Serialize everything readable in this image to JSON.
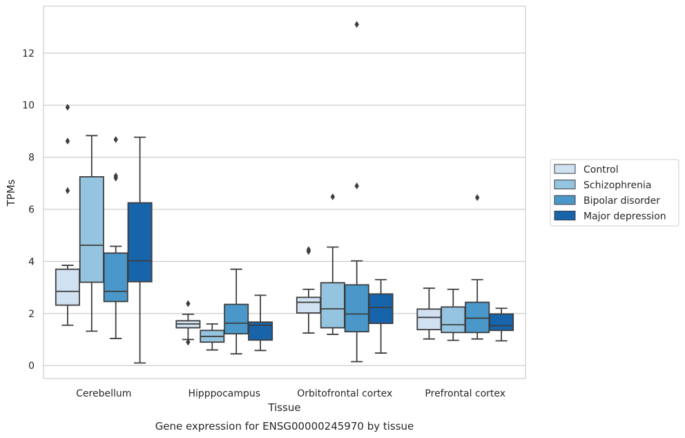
{
  "caption": "Gene expression for ENSG00000245970 by tissue",
  "chart_data": {
    "type": "box",
    "xlabel": "Tissue",
    "ylabel": "TPMs",
    "ylim": [
      -0.5,
      13.8
    ],
    "yticks": [
      0,
      2,
      4,
      6,
      8,
      10,
      12
    ],
    "grid": "horizontal",
    "legend_position": "right",
    "categories": [
      "Cerebellum",
      "Hipppocampus",
      "Orbitofrontal cortex",
      "Prefrontal cortex"
    ],
    "series": [
      {
        "name": "Control",
        "color": "#d0e1f2",
        "boxes": [
          {
            "whislo": 1.55,
            "q1": 2.32,
            "med": 2.85,
            "q3": 3.7,
            "whishi": 3.85,
            "fliers": [
              6.72,
              8.62,
              9.92
            ]
          },
          {
            "whislo": 1.0,
            "q1": 1.45,
            "med": 1.6,
            "q3": 1.72,
            "whishi": 1.97,
            "fliers": [
              0.9,
              2.38
            ]
          },
          {
            "whislo": 1.25,
            "q1": 2.02,
            "med": 2.43,
            "q3": 2.62,
            "whishi": 2.93,
            "fliers": [
              4.38,
              4.45
            ]
          },
          {
            "whislo": 1.02,
            "q1": 1.38,
            "med": 1.85,
            "q3": 2.17,
            "whishi": 2.97,
            "fliers": []
          }
        ]
      },
      {
        "name": "Schizophrenia",
        "color": "#94c4df",
        "boxes": [
          {
            "whislo": 1.32,
            "q1": 3.2,
            "med": 4.62,
            "q3": 7.25,
            "whishi": 8.83,
            "fliers": []
          },
          {
            "whislo": 0.6,
            "q1": 0.9,
            "med": 1.12,
            "q3": 1.35,
            "whishi": 1.6,
            "fliers": []
          },
          {
            "whislo": 1.2,
            "q1": 1.45,
            "med": 2.18,
            "q3": 3.18,
            "whishi": 4.55,
            "fliers": [
              6.48
            ]
          },
          {
            "whislo": 0.97,
            "q1": 1.27,
            "med": 1.57,
            "q3": 2.25,
            "whishi": 2.93,
            "fliers": []
          }
        ]
      },
      {
        "name": "Bipolar disorder",
        "color": "#4a98c9",
        "boxes": [
          {
            "whislo": 1.04,
            "q1": 2.46,
            "med": 2.85,
            "q3": 4.32,
            "whishi": 4.58,
            "fliers": [
              7.2,
              7.28,
              8.68
            ]
          },
          {
            "whislo": 0.45,
            "q1": 1.22,
            "med": 1.63,
            "q3": 2.35,
            "whishi": 3.7,
            "fliers": []
          },
          {
            "whislo": 0.15,
            "q1": 1.3,
            "med": 1.98,
            "q3": 3.1,
            "whishi": 4.02,
            "fliers": [
              6.9,
              13.1
            ]
          },
          {
            "whislo": 1.02,
            "q1": 1.27,
            "med": 1.82,
            "q3": 2.43,
            "whishi": 3.3,
            "fliers": [
              6.45
            ]
          }
        ]
      },
      {
        "name": "Major depression",
        "color": "#1764ab",
        "boxes": [
          {
            "whislo": 0.1,
            "q1": 3.22,
            "med": 4.02,
            "q3": 6.25,
            "whishi": 8.77,
            "fliers": []
          },
          {
            "whislo": 0.58,
            "q1": 0.98,
            "med": 1.55,
            "q3": 1.67,
            "whishi": 2.7,
            "fliers": []
          },
          {
            "whislo": 0.48,
            "q1": 1.62,
            "med": 2.23,
            "q3": 2.75,
            "whishi": 3.3,
            "fliers": []
          },
          {
            "whislo": 0.95,
            "q1": 1.35,
            "med": 1.53,
            "q3": 1.98,
            "whishi": 2.2,
            "fliers": []
          }
        ]
      }
    ]
  }
}
